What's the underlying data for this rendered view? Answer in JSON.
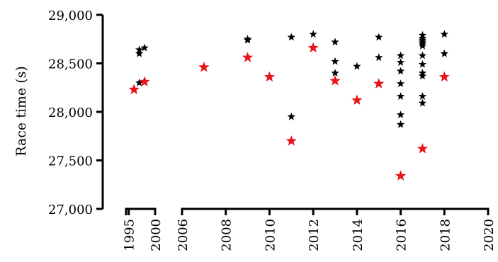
{
  "chart_data": {
    "type": "scatter",
    "title": "",
    "xlabel": "",
    "ylabel": "Race time (s)",
    "ylim": [
      27000,
      29000
    ],
    "y_ticks": [
      27000,
      27500,
      28000,
      28500,
      29000
    ],
    "y_tick_labels": [
      "27,000",
      "27,500",
      "28,000",
      "28,500",
      "29,000"
    ],
    "x_segments": [
      {
        "range": [
          1994.5,
          2000
        ],
        "ticks": [
          1995,
          2000
        ],
        "tick_labels": [
          "1995",
          "2000"
        ]
      },
      {
        "range": [
          2006,
          2020
        ],
        "ticks": [
          2006,
          2008,
          2010,
          2012,
          2014,
          2016,
          2018,
          2020
        ],
        "tick_labels": [
          "2006",
          "2008",
          "2010",
          "2012",
          "2014",
          "2016",
          "2018",
          "2020"
        ]
      }
    ],
    "marker": "star",
    "grid": false,
    "series": [
      {
        "color": "#000000",
        "points": [
          [
            1997,
            28640
          ],
          [
            1997,
            28600
          ],
          [
            1997,
            28300
          ],
          [
            1998,
            28660
          ],
          [
            2009,
            28750
          ],
          [
            2009,
            28740
          ],
          [
            2011,
            28770
          ],
          [
            2011,
            27950
          ],
          [
            2012,
            28800
          ],
          [
            2013,
            28720
          ],
          [
            2013,
            28520
          ],
          [
            2013,
            28400
          ],
          [
            2014,
            28470
          ],
          [
            2015,
            28770
          ],
          [
            2015,
            28560
          ],
          [
            2016,
            28580
          ],
          [
            2016,
            28510
          ],
          [
            2016,
            28420
          ],
          [
            2016,
            28290
          ],
          [
            2016,
            28160
          ],
          [
            2016,
            27970
          ],
          [
            2016,
            27870
          ],
          [
            2017,
            28790
          ],
          [
            2017,
            28760
          ],
          [
            2017,
            28740
          ],
          [
            2017,
            28720
          ],
          [
            2017,
            28700
          ],
          [
            2017,
            28680
          ],
          [
            2017,
            28580
          ],
          [
            2017,
            28490
          ],
          [
            2017,
            28400
          ],
          [
            2017,
            28370
          ],
          [
            2017,
            28160
          ],
          [
            2017,
            28090
          ],
          [
            2018,
            28800
          ],
          [
            2018,
            28600
          ]
        ]
      },
      {
        "color": "#e8141b",
        "points": [
          [
            1996,
            28230
          ],
          [
            1998,
            28310
          ],
          [
            2007,
            28460
          ],
          [
            2009,
            28560
          ],
          [
            2010,
            28360
          ],
          [
            2011,
            27700
          ],
          [
            2012,
            28660
          ],
          [
            2013,
            28320
          ],
          [
            2014,
            28120
          ],
          [
            2015,
            28290
          ],
          [
            2016,
            27340
          ],
          [
            2017,
            27620
          ],
          [
            2018,
            28360
          ]
        ]
      }
    ]
  }
}
